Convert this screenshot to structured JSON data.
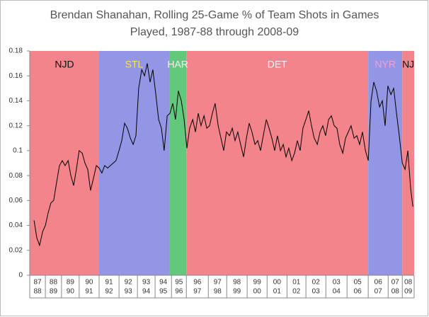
{
  "chart_data": {
    "type": "line",
    "title": [
      "Brendan Shanahan, Rolling 25-Game % of Team Shots in Games",
      "Played, 1987-88 through 2008-09"
    ],
    "ylim": [
      0,
      0.18
    ],
    "yticks": [
      0,
      0.02,
      0.04,
      0.06,
      0.08,
      0.1,
      0.12,
      0.14,
      0.16,
      0.18
    ],
    "xlim": [
      0,
      1524
    ],
    "xticks": [
      0,
      62,
      126,
      196,
      275,
      354,
      427,
      497,
      562,
      621,
      708,
      781,
      862,
      941,
      1020,
      1095,
      1174,
      1258,
      1342,
      1421,
      1477,
      1524
    ],
    "categories": [
      [
        "87",
        "88"
      ],
      [
        "88",
        "89"
      ],
      [
        "89",
        "90"
      ],
      [
        "90",
        "91"
      ],
      [
        "91",
        "92"
      ],
      [
        "92",
        "93"
      ],
      [
        "93",
        "94"
      ],
      [
        "94",
        "95"
      ],
      [
        "95",
        "96"
      ],
      [
        "96",
        "97"
      ],
      [
        "97",
        "98"
      ],
      [
        "98",
        "99"
      ],
      [
        "99",
        "00"
      ],
      [
        "00",
        "01"
      ],
      [
        "01",
        "02"
      ],
      [
        "02",
        "03"
      ],
      [
        "03",
        "04"
      ],
      [
        "05",
        "06"
      ],
      [
        "06",
        "07"
      ],
      [
        "07",
        "08"
      ],
      [
        "08",
        "09"
      ]
    ],
    "bands": [
      {
        "label": "NJD",
        "from": 0,
        "to": 275,
        "color": "#f4848c",
        "label_color": "#111111"
      },
      {
        "label": "STL",
        "from": 275,
        "to": 553,
        "color": "#9396e4",
        "label_color": "#f2e45a"
      },
      {
        "label": "HAR",
        "from": 553,
        "to": 621,
        "color": "#62c97c",
        "label_color": "#f4f4f4"
      },
      {
        "label": "DET",
        "from": 621,
        "to": 1342,
        "color": "#f4848c",
        "label_color": "#f8f8f8"
      },
      {
        "label": "NYR",
        "from": 1342,
        "to": 1477,
        "color": "#9396e4",
        "label_color": "#f3a0d8"
      },
      {
        "label": "NJ",
        "from": 1477,
        "to": 1524,
        "color": "#f4848c",
        "label_color": "#111111"
      }
    ],
    "series": [
      {
        "color": "#000000",
        "x": [
          17,
          28,
          39,
          51,
          62,
          73,
          84,
          95,
          107,
          118,
          129,
          140,
          152,
          163,
          174,
          185,
          196,
          208,
          219,
          230,
          241,
          253,
          264,
          275,
          286,
          297,
          309,
          320,
          331,
          342,
          354,
          365,
          376,
          387,
          399,
          410,
          421,
          432,
          444,
          455,
          466,
          477,
          488,
          500,
          511,
          522,
          533,
          545,
          556,
          567,
          578,
          589,
          601,
          612,
          623,
          634,
          646,
          657,
          668,
          679,
          691,
          702,
          713,
          724,
          735,
          747,
          758,
          769,
          780,
          792,
          803,
          814,
          825,
          836,
          848,
          859,
          870,
          881,
          893,
          904,
          915,
          926,
          938,
          949,
          960,
          971,
          982,
          994,
          1005,
          1016,
          1027,
          1039,
          1050,
          1061,
          1072,
          1083,
          1095,
          1106,
          1117,
          1128,
          1140,
          1151,
          1162,
          1173,
          1185,
          1196,
          1207,
          1218,
          1229,
          1241,
          1252,
          1263,
          1274,
          1286,
          1297,
          1308,
          1319,
          1331,
          1342,
          1353,
          1364,
          1375,
          1387,
          1398,
          1409,
          1420,
          1432,
          1443,
          1454,
          1465,
          1477,
          1488,
          1499,
          1510,
          1519
        ],
        "values": [
          0.044,
          0.03,
          0.024,
          0.035,
          0.04,
          0.05,
          0.058,
          0.06,
          0.075,
          0.088,
          0.092,
          0.088,
          0.092,
          0.08,
          0.072,
          0.085,
          0.1,
          0.098,
          0.09,
          0.085,
          0.068,
          0.078,
          0.088,
          0.086,
          0.082,
          0.088,
          0.086,
          0.088,
          0.09,
          0.092,
          0.1,
          0.108,
          0.122,
          0.118,
          0.11,
          0.105,
          0.112,
          0.15,
          0.165,
          0.16,
          0.17,
          0.155,
          0.165,
          0.145,
          0.125,
          0.118,
          0.1,
          0.128,
          0.13,
          0.138,
          0.125,
          0.148,
          0.14,
          0.125,
          0.102,
          0.118,
          0.125,
          0.115,
          0.13,
          0.12,
          0.128,
          0.118,
          0.12,
          0.13,
          0.138,
          0.12,
          0.11,
          0.1,
          0.115,
          0.112,
          0.118,
          0.108,
          0.115,
          0.105,
          0.095,
          0.11,
          0.122,
          0.115,
          0.105,
          0.108,
          0.1,
          0.112,
          0.125,
          0.118,
          0.11,
          0.1,
          0.112,
          0.1,
          0.105,
          0.095,
          0.102,
          0.092,
          0.098,
          0.108,
          0.1,
          0.118,
          0.125,
          0.132,
          0.12,
          0.11,
          0.105,
          0.115,
          0.12,
          0.112,
          0.125,
          0.128,
          0.12,
          0.118,
          0.105,
          0.098,
          0.11,
          0.115,
          0.12,
          0.11,
          0.112,
          0.105,
          0.115,
          0.1,
          0.092,
          0.14,
          0.155,
          0.148,
          0.135,
          0.14,
          0.12,
          0.152,
          0.145,
          0.15,
          0.13,
          0.112,
          0.09,
          0.085,
          0.1,
          0.07,
          0.055
        ]
      }
    ]
  }
}
